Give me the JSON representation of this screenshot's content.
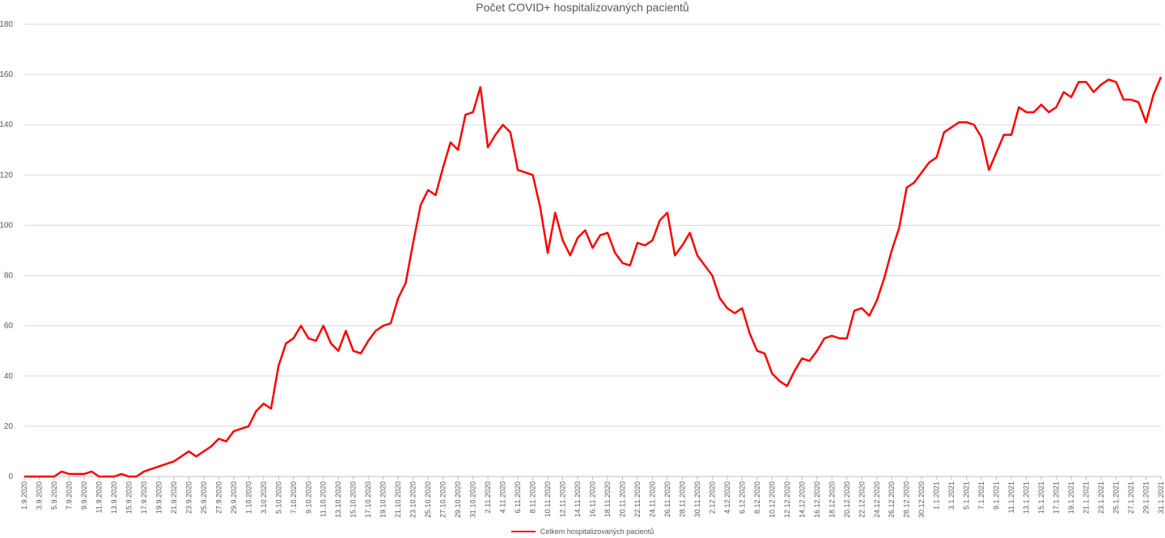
{
  "chart_data": {
    "type": "line",
    "title": "Počet COVID+ hospitalizovaných pacientů",
    "xlabel": "",
    "ylabel": "",
    "ylim": [
      0,
      180
    ],
    "yticks": [
      0,
      20,
      40,
      60,
      80,
      100,
      120,
      140,
      160,
      180
    ],
    "grid": true,
    "legend_position": "bottom",
    "x_tick_labels": [
      "1.9.2020",
      "3.9.2020",
      "5.9.2020",
      "7.9.2020",
      "9.9.2020",
      "11.9.2020",
      "13.9.2020",
      "15.9.2020",
      "17.9.2020",
      "19.9.2020",
      "21.9.2020",
      "23.9.2020",
      "25.9.2020",
      "27.9.2020",
      "29.9.2020",
      "1.10.2020",
      "3.10.2020",
      "5.10.2020",
      "7.10.2020",
      "9.10.2020",
      "11.10.2020",
      "13.10.2020",
      "15.10.2020",
      "17.10.2020",
      "19.10.2020",
      "21.10.2020",
      "23.10.2020",
      "25.10.2020",
      "27.10.2020",
      "29.10.2020",
      "31.10.2020",
      "2.11.2020",
      "4.11.2020",
      "6.11.2020",
      "8.11.2020",
      "10.11.2020",
      "12.11.2020",
      "14.11.2020",
      "16.11.2020",
      "18.11.2020",
      "20.11.2020",
      "22.11.2020",
      "24.11.2020",
      "26.11.2020",
      "28.11.2020",
      "30.11.2020",
      "2.12.2020",
      "4.12.2020",
      "6.12.2020",
      "8.12.2020",
      "10.12.2020",
      "12.12.2020",
      "14.12.2020",
      "16.12.2020",
      "18.12.2020",
      "20.12.2020",
      "22.12.2020",
      "24.12.2020",
      "26.12.2020",
      "28.12.2020",
      "30.12.2020",
      "1.1.2021",
      "3.1.2021",
      "5.1.2021",
      "7.1.2021",
      "9.1.2021",
      "11.1.2021",
      "13.1.2021",
      "15.1.2021",
      "17.1.2021",
      "19.1.2021",
      "21.1.2021",
      "23.1.2021",
      "25.1.2021",
      "27.1.2021",
      "29.1.2021",
      "31.1.2021"
    ],
    "series": [
      {
        "name": "Celkem hospitalizovaných pacientů",
        "color": "#ff0000",
        "start_date": "1.9.2020",
        "values": [
          0,
          0,
          0,
          0,
          0,
          2,
          1,
          1,
          1,
          2,
          0,
          0,
          0,
          1,
          0,
          0,
          2,
          3,
          4,
          5,
          6,
          8,
          10,
          8,
          10,
          12,
          15,
          14,
          18,
          19,
          20,
          26,
          29,
          27,
          44,
          53,
          55,
          60,
          55,
          54,
          60,
          53,
          50,
          58,
          50,
          49,
          54,
          58,
          60,
          61,
          71,
          77,
          93,
          108,
          114,
          112,
          123,
          133,
          130,
          144,
          145,
          155,
          131,
          136,
          140,
          137,
          122,
          121,
          120,
          107,
          89,
          105,
          94,
          88,
          95,
          98,
          91,
          96,
          97,
          89,
          85,
          84,
          93,
          92,
          94,
          102,
          105,
          88,
          92,
          97,
          88,
          84,
          80,
          71,
          67,
          65,
          67,
          57,
          50,
          49,
          41,
          38,
          36,
          42,
          47,
          46,
          50,
          55,
          56,
          55,
          55,
          66,
          67,
          64,
          70,
          79,
          90,
          99,
          115,
          117,
          121,
          125,
          127,
          137,
          139,
          141,
          141,
          140,
          135,
          122,
          129,
          136,
          136,
          147,
          145,
          145,
          148,
          145,
          147,
          153,
          151,
          157,
          157,
          153,
          156,
          158,
          157,
          150,
          150,
          149,
          141,
          152,
          159
        ]
      }
    ]
  }
}
